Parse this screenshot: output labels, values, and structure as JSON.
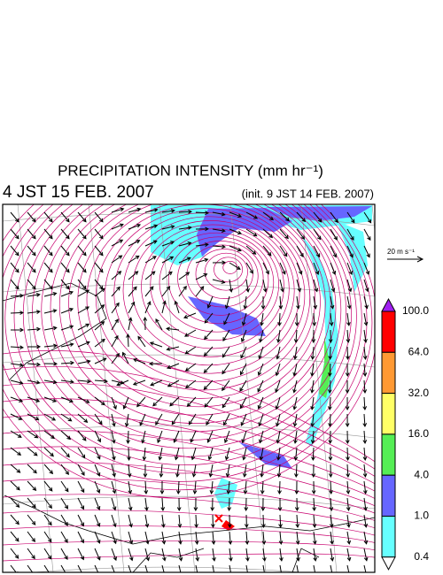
{
  "header": {
    "title": "PRECIPITATION INTENSITY (mm hr⁻¹)",
    "valid_time": "4 JST 15 FEB. 2007",
    "init_time": "(init. 9 JST 14 FEB. 2007)"
  },
  "wind_scale": {
    "label": "20 m s⁻¹"
  },
  "colorbar": {
    "labels": [
      "100.0",
      "64.0",
      "32.0",
      "16.0",
      "4.0",
      "1.0",
      "0.4"
    ],
    "colors": [
      "#a020f0",
      "#ff0000",
      "#ff9933",
      "#ffff66",
      "#55ee55",
      "#6666ff",
      "#66ffff",
      "#ffffff"
    ]
  }
}
